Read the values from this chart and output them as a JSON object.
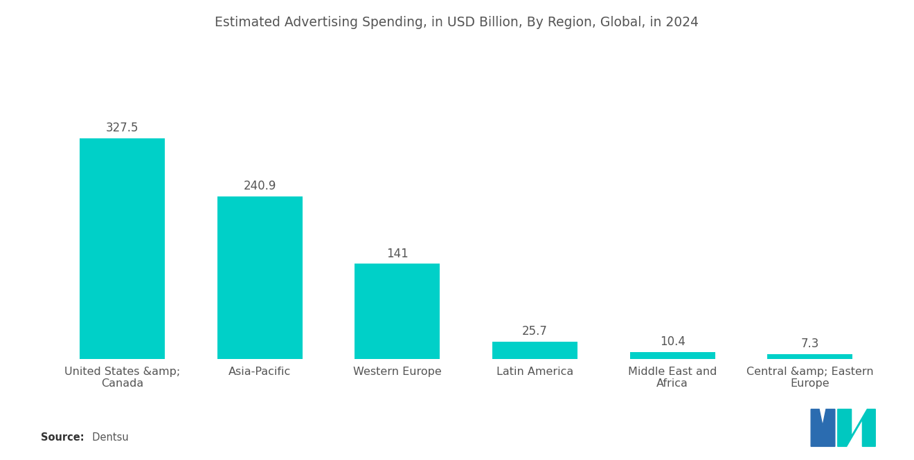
{
  "title": "Estimated Advertising Spending, in USD Billion, By Region, Global, in 2024",
  "categories": [
    "United States &amp;;\nCanada",
    "Asia-Pacific",
    "Western Europe",
    "Latin America",
    "Middle East and\nAfrica",
    "Central &amp;; Eastern\nEurope"
  ],
  "values": [
    327.5,
    240.9,
    141,
    25.7,
    10.4,
    7.3
  ],
  "bar_color": "#00D0C8",
  "background_color": "#ffffff",
  "title_fontsize": 13.5,
  "label_fontsize": 11.5,
  "value_fontsize": 12,
  "source_label": "Source:",
  "source_value": "  Dentsu",
  "ylim": [
    0,
    410
  ],
  "bar_width": 0.62
}
